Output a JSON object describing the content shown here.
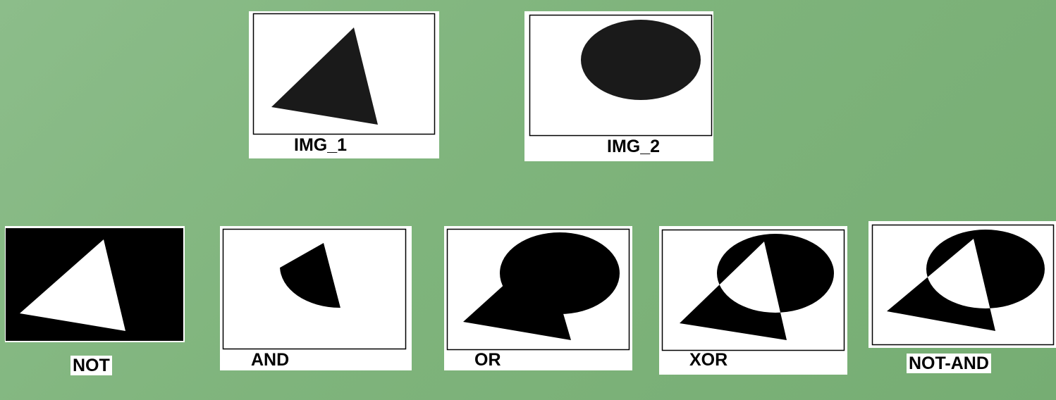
{
  "inputs": {
    "img1": {
      "label": "IMG_1"
    },
    "img2": {
      "label": "IMG_2"
    }
  },
  "operations": {
    "not": {
      "label": "NOT"
    },
    "and": {
      "label": "AND"
    },
    "or": {
      "label": "OR"
    },
    "xor": {
      "label": "XOR"
    },
    "not_and": {
      "label": "NOT-AND"
    }
  },
  "colors": {
    "background": "#7fb47c",
    "foreground": "#000000",
    "paper": "#ffffff"
  }
}
